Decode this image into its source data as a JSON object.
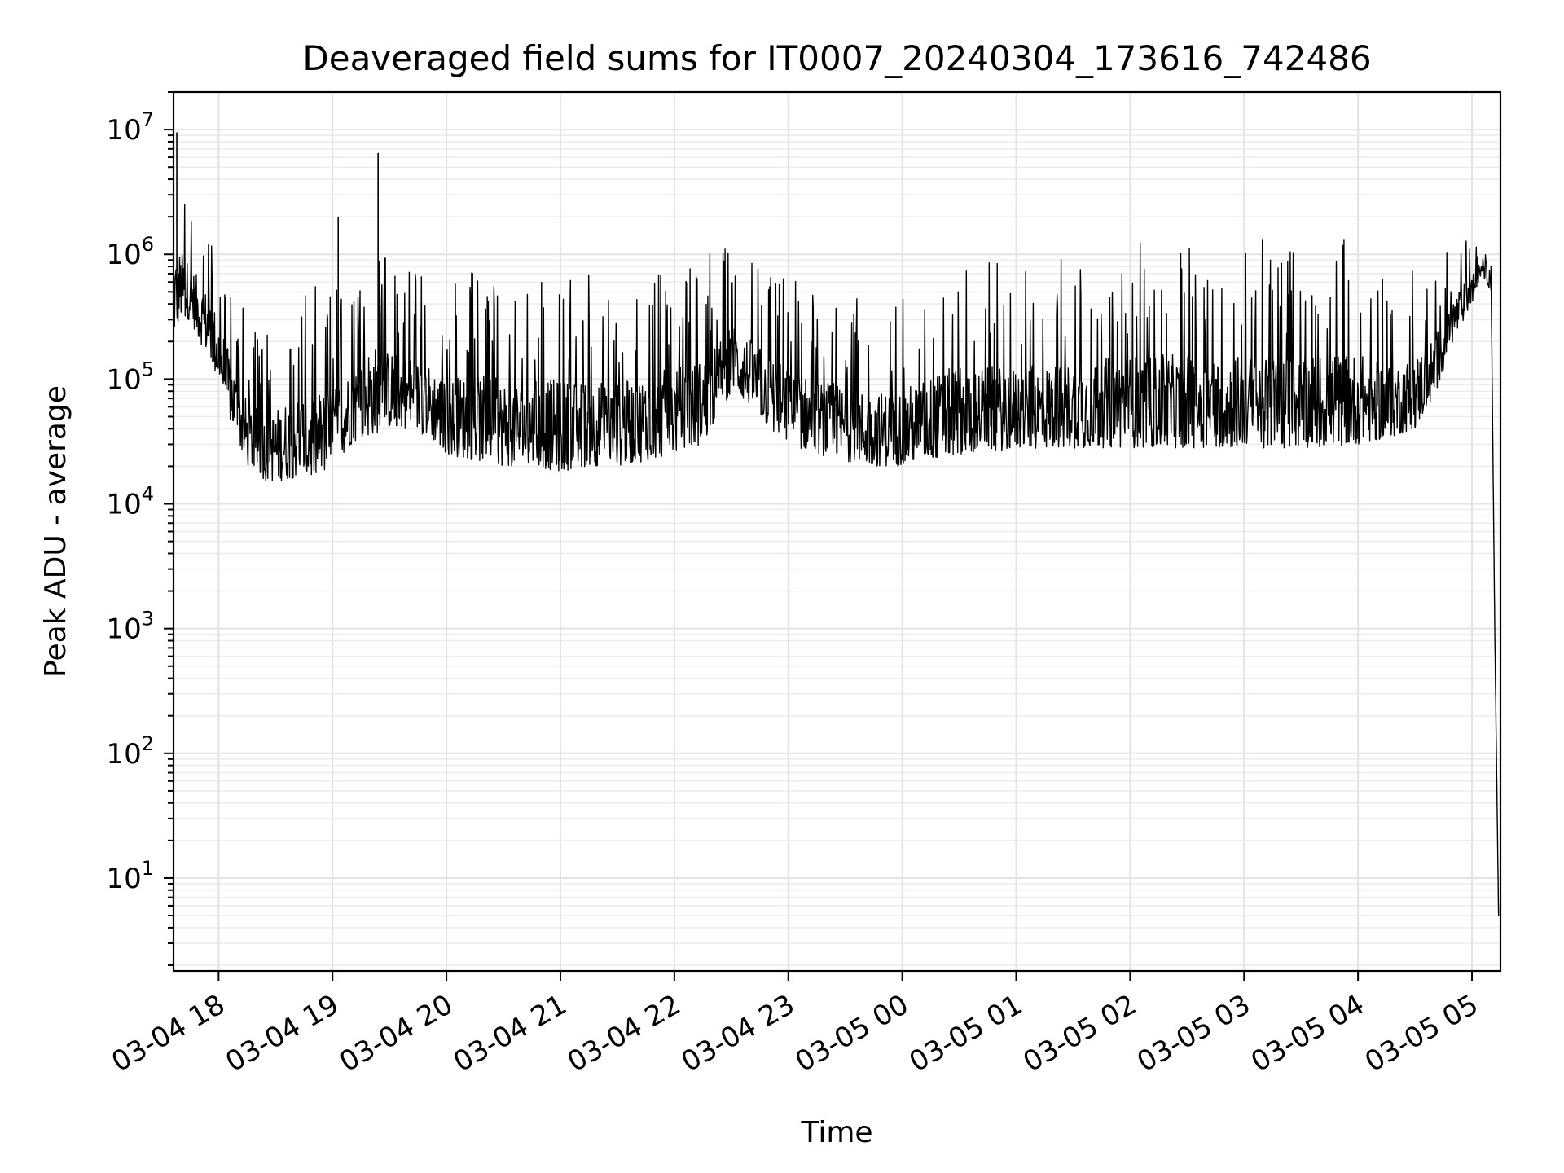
{
  "chart_data": {
    "type": "line",
    "title": "Deaveraged field sums for IT0007_20240304_173616_742486",
    "xlabel": "Time",
    "ylabel": "Peak ADU - average",
    "yscale": "log",
    "ylim": [
      1.8,
      20000000
    ],
    "xlim": [
      "2024-03-04 17:36:16",
      "2024-03-05 05:15:00"
    ],
    "grid": "on (major and minor)",
    "legend": "none",
    "line_color": "#000000",
    "x_ticks": [
      {
        "label": "03-04 18",
        "t": "2024-03-04 18:00"
      },
      {
        "label": "03-04 19",
        "t": "2024-03-04 19:00"
      },
      {
        "label": "03-04 20",
        "t": "2024-03-04 20:00"
      },
      {
        "label": "03-04 21",
        "t": "2024-03-04 21:00"
      },
      {
        "label": "03-04 22",
        "t": "2024-03-04 22:00"
      },
      {
        "label": "03-04 23",
        "t": "2024-03-04 23:00"
      },
      {
        "label": "03-05 00",
        "t": "2024-03-05 00:00"
      },
      {
        "label": "03-05 01",
        "t": "2024-03-05 01:00"
      },
      {
        "label": "03-05 02",
        "t": "2024-03-05 02:00"
      },
      {
        "label": "03-05 03",
        "t": "2024-03-05 03:00"
      },
      {
        "label": "03-05 04",
        "t": "2024-03-05 04:00"
      },
      {
        "label": "03-05 05",
        "t": "2024-03-05 05:00"
      }
    ],
    "y_ticks": [
      {
        "base": "10",
        "exp": "1",
        "value": 10
      },
      {
        "base": "10",
        "exp": "2",
        "value": 100
      },
      {
        "base": "10",
        "exp": "3",
        "value": 1000
      },
      {
        "base": "10",
        "exp": "4",
        "value": 10000
      },
      {
        "base": "10",
        "exp": "5",
        "value": 100000
      },
      {
        "base": "10",
        "exp": "6",
        "value": 1000000
      },
      {
        "base": "10",
        "exp": "7",
        "value": 10000000
      }
    ],
    "series": [
      {
        "style": "noisy time series (envelope: low/high values per time)",
        "x": [
          "2024-03-04 17:36",
          "2024-03-04 17:40",
          "2024-03-04 17:45",
          "2024-03-04 17:50",
          "2024-03-04 17:55",
          "2024-03-04 18:00",
          "2024-03-04 18:05",
          "2024-03-04 18:10",
          "2024-03-04 18:15",
          "2024-03-04 18:20",
          "2024-03-04 18:25",
          "2024-03-04 18:30",
          "2024-03-04 18:40",
          "2024-03-04 18:50",
          "2024-03-04 19:00",
          "2024-03-04 19:10",
          "2024-03-04 19:20",
          "2024-03-04 19:30",
          "2024-03-04 19:40",
          "2024-03-04 19:50",
          "2024-03-04 20:00",
          "2024-03-04 20:15",
          "2024-03-04 20:30",
          "2024-03-04 20:45",
          "2024-03-04 21:00",
          "2024-03-04 21:15",
          "2024-03-04 21:30",
          "2024-03-04 21:45",
          "2024-03-04 22:00",
          "2024-03-04 22:15",
          "2024-03-04 22:30",
          "2024-03-04 22:40",
          "2024-03-04 22:50",
          "2024-03-04 23:00",
          "2024-03-04 23:15",
          "2024-03-04 23:30",
          "2024-03-04 23:45",
          "2024-03-05 00:00",
          "2024-03-05 00:30",
          "2024-03-05 01:00",
          "2024-03-05 01:30",
          "2024-03-05 02:00",
          "2024-03-05 02:30",
          "2024-03-05 03:00",
          "2024-03-05 03:30",
          "2024-03-05 04:00",
          "2024-03-05 04:10",
          "2024-03-05 04:20",
          "2024-03-05 04:30",
          "2024-03-05 04:40",
          "2024-03-05 04:50",
          "2024-03-05 05:00",
          "2024-03-05 05:05",
          "2024-03-05 05:10",
          "2024-03-05 05:12",
          "2024-03-05 05:14"
        ],
        "low": [
          200000,
          300000,
          300000,
          200000,
          150000,
          90000,
          50000,
          30000,
          20000,
          18000,
          15000,
          15000,
          16000,
          15000,
          20000,
          30000,
          35000,
          40000,
          40000,
          35000,
          25000,
          22000,
          20000,
          20000,
          18000,
          20000,
          20000,
          22000,
          25000,
          30000,
          80000,
          60000,
          40000,
          30000,
          25000,
          22000,
          20000,
          20000,
          25000,
          27000,
          28000,
          28000,
          28000,
          28000,
          28000,
          30000,
          32000,
          35000,
          40000,
          70000,
          200000,
          400000,
          700000,
          500000,
          1000,
          5
        ],
        "high": [
          9000000,
          5000000,
          3000000,
          2500000,
          2000000,
          1500000,
          800000,
          500000,
          300000,
          250000,
          250000,
          300000,
          500000,
          600000,
          500000,
          700000,
          1500000,
          1000000,
          800000,
          700000,
          600000,
          800000,
          700000,
          700000,
          800000,
          700000,
          600000,
          800000,
          900000,
          1000000,
          1200000,
          1000000,
          800000,
          700000,
          500000,
          500000,
          400000,
          500000,
          1000000,
          800000,
          1000000,
          1300000,
          1300000,
          1300000,
          1300000,
          1300000,
          800000,
          700000,
          800000,
          900000,
          1200000,
          1400000,
          1200000,
          800000,
          1000,
          5
        ],
        "spikes": [
          {
            "t": "2024-03-04 19:24",
            "v": 6500000
          },
          {
            "t": "2024-03-04 19:03",
            "v": 2000000
          },
          {
            "t": "2024-03-04 17:38",
            "v": 9500000
          }
        ]
      }
    ]
  }
}
